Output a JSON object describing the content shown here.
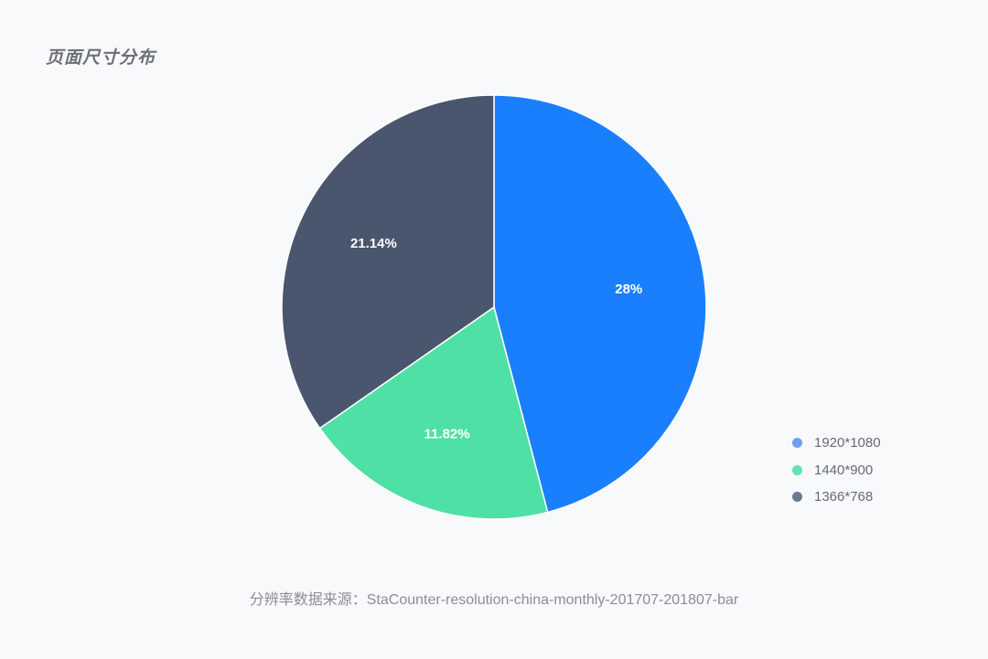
{
  "header": {
    "title": "页面尺寸分布"
  },
  "chart_data": {
    "type": "pie",
    "title": "页面尺寸分布",
    "categories": [
      "1920*1080",
      "1440*900",
      "1366*768"
    ],
    "values": [
      28,
      11.82,
      21.14
    ],
    "labels": [
      "28%",
      "11.82%",
      "21.14%"
    ],
    "colors": [
      "#1a7ffd",
      "#4fe0a6",
      "#4a566e"
    ],
    "legend_colors": [
      "#6f9ff0",
      "#62e3b5",
      "#6c7790"
    ],
    "start_angle_deg": 0,
    "direction": "clockwise",
    "legend_position": "bottom-right"
  },
  "legend": {
    "items": [
      {
        "label": "1920*1080",
        "color": "#6f9ff0"
      },
      {
        "label": "1440*900",
        "color": "#62e3b5"
      },
      {
        "label": "1366*768",
        "color": "#6c7790"
      }
    ]
  },
  "footer": {
    "source": "分辨率数据来源：StaCounter-resolution-china-monthly-201707-201807-bar"
  }
}
